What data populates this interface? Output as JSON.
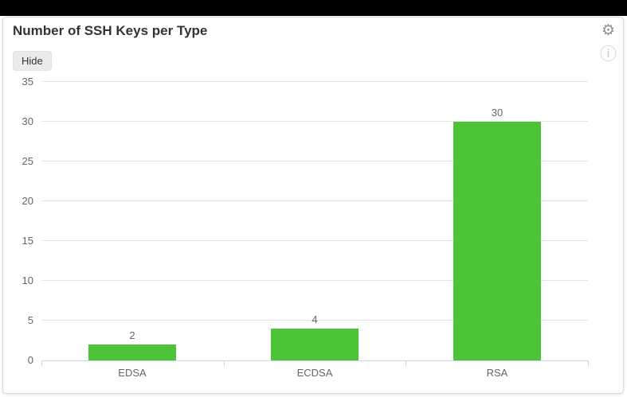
{
  "header": {
    "title": "Number of SSH Keys per Type",
    "hide_button_label": "Hide"
  },
  "icons": {
    "gear_glyph": "⚙",
    "info_glyph": "ⓘ"
  },
  "colors": {
    "bar_green": "#4dc437",
    "gridline": "#e4e4e4",
    "axis_line": "#ccd6eb",
    "label_gray": "#666666",
    "title_color": "#333333",
    "topbar_black": "#000000"
  },
  "chart_data": {
    "type": "bar",
    "title": "Number of SSH Keys per Type",
    "categories": [
      "EDSA",
      "ECDSA",
      "RSA"
    ],
    "values": [
      2,
      4,
      30
    ],
    "value_labels": [
      "2",
      "4",
      "30"
    ],
    "xlabel": "",
    "ylabel": "",
    "ylim": [
      0,
      35
    ],
    "ytick_step": 5,
    "yticks": [
      0,
      5,
      10,
      15,
      20,
      25,
      30,
      35
    ],
    "grid": true,
    "legend": false,
    "bar_color": "#4dc437"
  }
}
